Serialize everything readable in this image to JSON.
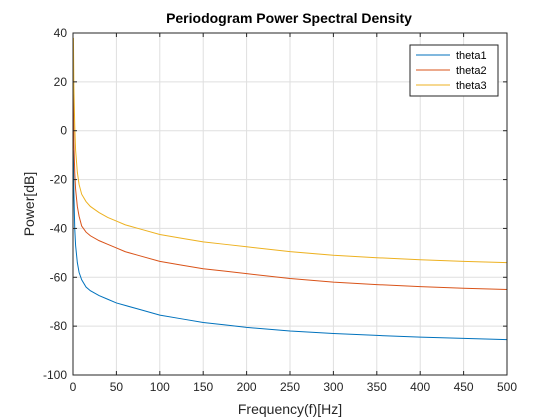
{
  "chart_data": {
    "type": "line",
    "title": "Periodogram Power Spectral Density",
    "xlabel": "Frequency(f)[Hz]",
    "ylabel": "Power[dB]",
    "xlim": [
      0,
      500
    ],
    "ylim": [
      -100,
      40
    ],
    "xticks": [
      0,
      50,
      100,
      150,
      200,
      250,
      300,
      350,
      400,
      450,
      500
    ],
    "yticks": [
      -100,
      -80,
      -60,
      -40,
      -20,
      0,
      20,
      40
    ],
    "grid": true,
    "legend_position": "top-right",
    "series": [
      {
        "name": "theta1",
        "color": "#0072BD",
        "x": [
          0.5,
          1,
          2,
          3,
          5,
          7,
          10,
          15,
          20,
          30,
          40,
          50,
          60,
          75,
          100,
          125,
          150,
          175,
          200,
          250,
          300,
          350,
          400,
          450,
          500
        ],
        "y": [
          -8,
          -25,
          -40,
          -47,
          -54,
          -58,
          -61,
          -64,
          -65.5,
          -67.5,
          -69,
          -70.5,
          -71.5,
          -73,
          -75.5,
          -77,
          -78.5,
          -79.5,
          -80.5,
          -82,
          -83,
          -83.8,
          -84.5,
          -85,
          -85.5
        ]
      },
      {
        "name": "theta2",
        "color": "#D95319",
        "x": [
          0.5,
          1,
          2,
          3,
          5,
          7,
          10,
          15,
          20,
          30,
          40,
          50,
          60,
          75,
          100,
          125,
          150,
          175,
          200,
          250,
          300,
          350,
          400,
          450,
          500
        ],
        "y": [
          15,
          -5,
          -17,
          -24,
          -31,
          -35,
          -39,
          -41.5,
          -43,
          -45,
          -46.5,
          -48,
          -49.5,
          -51,
          -53.5,
          -55,
          -56.5,
          -57.5,
          -58.5,
          -60.5,
          -62,
          -63,
          -63.8,
          -64.5,
          -65
        ]
      },
      {
        "name": "theta3",
        "color": "#EDB120",
        "x": [
          0.5,
          1,
          2,
          3,
          5,
          7,
          10,
          15,
          20,
          30,
          40,
          50,
          60,
          75,
          100,
          125,
          150,
          175,
          200,
          250,
          300,
          350,
          400,
          450,
          500
        ],
        "y": [
          38,
          18,
          2,
          -8,
          -17,
          -22,
          -26,
          -29,
          -31,
          -33.5,
          -35.5,
          -37,
          -38.5,
          -40,
          -42.5,
          -44,
          -45.5,
          -46.5,
          -47.5,
          -49.5,
          -51,
          -52,
          -52.8,
          -53.5,
          -54
        ]
      }
    ]
  }
}
